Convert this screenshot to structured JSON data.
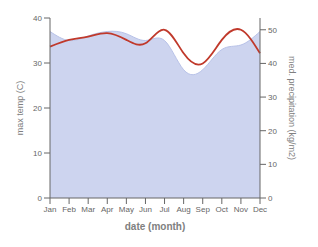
{
  "chart_data": {
    "type": "line",
    "xlabel": "date (month)",
    "ylabel": "max temp (C)",
    "y2label": "med. precipitation (kg/m2)",
    "categories": [
      "Jan",
      "Feb",
      "Mar",
      "Apr",
      "May",
      "Jun",
      "Jul",
      "Aug",
      "Sep",
      "Oct",
      "Nov",
      "Dec"
    ],
    "series": [
      {
        "type": "area",
        "color": "#b8c2e8",
        "values": [
          37,
          35,
          36,
          37,
          36.5,
          35,
          35,
          28.5,
          28.5,
          33,
          34,
          37
        ]
      },
      {
        "type": "line",
        "color": "#c0392b",
        "axis": "y2",
        "values": [
          45,
          47,
          48,
          49,
          47,
          46,
          50,
          43,
          40,
          47,
          50,
          43
        ]
      }
    ],
    "ylim": [
      0,
      40
    ],
    "yticks": [
      0,
      10,
      20,
      30,
      40
    ],
    "y2lim": [
      0,
      53.5
    ],
    "y2ticks": [
      0,
      10,
      20,
      30,
      40,
      50
    ]
  }
}
